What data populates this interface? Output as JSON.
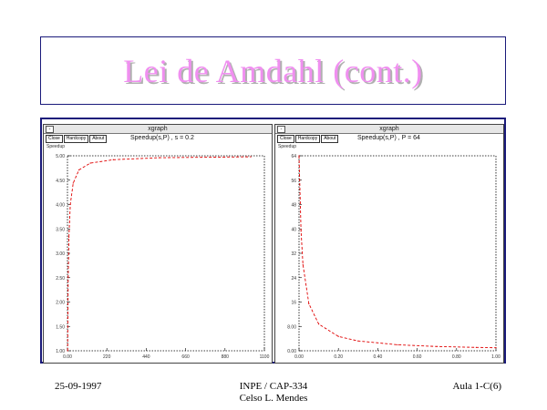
{
  "slide": {
    "title": "Lei de Amdahl (cont.)",
    "footer_left": "25-09-1997",
    "footer_center_line1": "INPE / CAP-334",
    "footer_center_line2": "Celso L. Mendes",
    "footer_right": "Aula 1-C(6)"
  },
  "windows": [
    {
      "window_title": "xgraph",
      "buttons": [
        "Close",
        "Hardcopy",
        "About"
      ],
      "y_axis_label": "Speedup",
      "graph_title": "Speedup(s,P) , s = 0.2"
    },
    {
      "window_title": "xgraph",
      "buttons": [
        "Close",
        "Hardcopy",
        "About"
      ],
      "y_axis_label": "Speedup",
      "graph_title": "Speedup(s,P) , P = 64"
    }
  ],
  "chart_data": [
    {
      "type": "line",
      "title": "Speedup(s,P) , s = 0.2",
      "ylabel": "Speedup",
      "xlabel": "",
      "xlim": [
        0,
        1100
      ],
      "ylim": [
        1.0,
        5.0
      ],
      "grid": false,
      "series": [
        {
          "color": "#e00000",
          "x": [
            1,
            2,
            4,
            8,
            16,
            32,
            64,
            128,
            256,
            512,
            1024
          ],
          "y": [
            1.0,
            1.67,
            2.5,
            3.33,
            4.0,
            4.44,
            4.71,
            4.85,
            4.92,
            4.96,
            4.98
          ]
        }
      ]
    },
    {
      "type": "line",
      "title": "Speedup(s,P) , P = 64",
      "ylabel": "Speedup",
      "xlabel": "",
      "xlim": [
        0.0,
        1.0
      ],
      "ylim": [
        0,
        64
      ],
      "grid": false,
      "series": [
        {
          "color": "#e00000",
          "x": [
            0.0,
            0.01,
            0.02,
            0.05,
            0.1,
            0.2,
            0.3,
            0.5,
            0.7,
            0.9,
            1.0
          ],
          "y": [
            64.0,
            39.26,
            28.32,
            15.42,
            8.77,
            4.71,
            3.22,
            1.97,
            1.42,
            1.1,
            1.0
          ]
        }
      ]
    }
  ]
}
